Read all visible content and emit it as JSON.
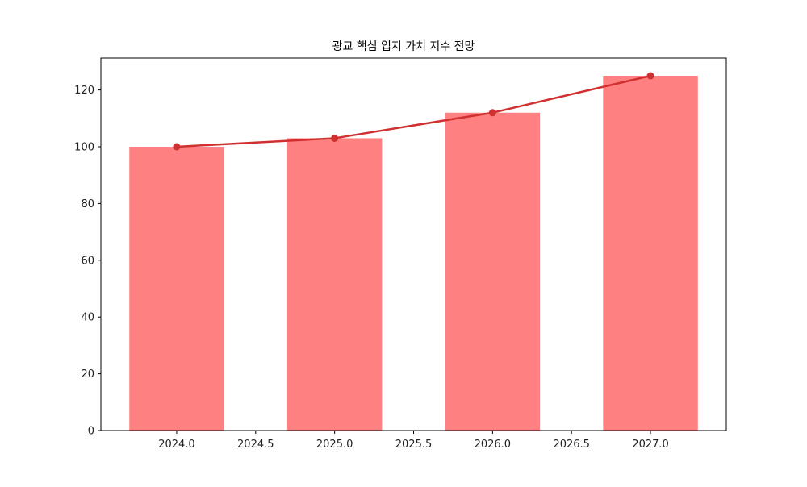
{
  "chart_data": {
    "type": "bar",
    "title": "광교 핵심 입지 가치 지수 전망",
    "xlabel": "",
    "ylabel": "",
    "categories": [
      2024,
      2025,
      2026,
      2027
    ],
    "series": [
      {
        "name": "bar",
        "type": "bar",
        "values": [
          100,
          103,
          112,
          125
        ],
        "color": "#ff8080",
        "bar_width": 0.6
      },
      {
        "name": "line",
        "type": "line",
        "values": [
          100,
          103,
          112,
          125
        ],
        "color": "#d03030",
        "marker": "circle"
      }
    ],
    "xlim": [
      2023.52,
      2027.48
    ],
    "ylim": [
      0,
      131.25
    ],
    "xticks": [
      "2024.0",
      "2024.5",
      "2025.0",
      "2025.5",
      "2026.0",
      "2026.5",
      "2027.0"
    ],
    "yticks": [
      "0",
      "20",
      "40",
      "60",
      "80",
      "100",
      "120"
    ],
    "grid": false,
    "legend": null
  }
}
